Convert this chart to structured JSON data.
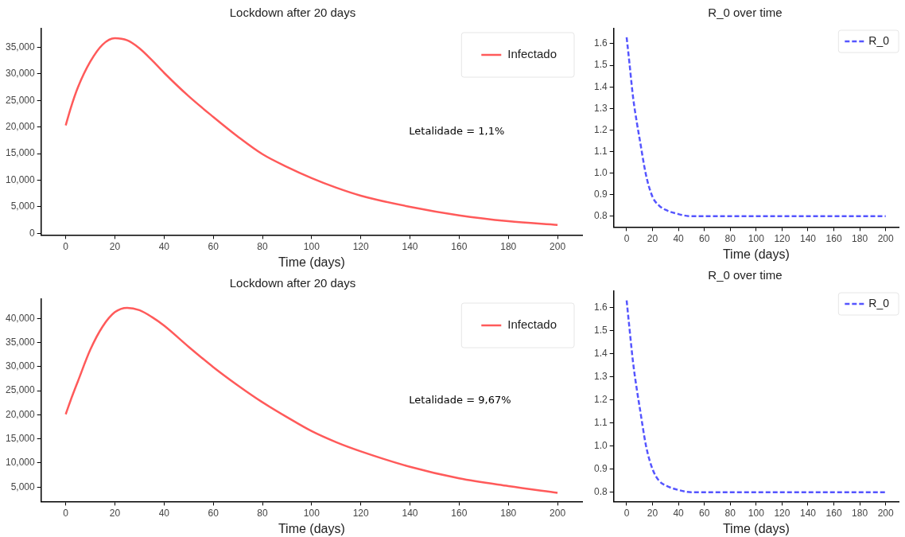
{
  "chart_data": [
    {
      "type": "line",
      "title": "Lockdown after 20 days",
      "xlabel": "Time (days)",
      "legend": "top right",
      "marker": "none",
      "annotations": [
        "Letalidade = 1,1%"
      ],
      "x": [
        0,
        2,
        5,
        10,
        15,
        20,
        25,
        30,
        35,
        40,
        50,
        60,
        70,
        80,
        90,
        100,
        110,
        120,
        140,
        160,
        180,
        200
      ],
      "series": [
        {
          "name": "Infectado",
          "color": "#ff5a5a",
          "line_style": "solid",
          "values": [
            20300,
            23500,
            27500,
            32300,
            35500,
            36700,
            36300,
            34800,
            32600,
            30200,
            25800,
            21900,
            18200,
            14900,
            12500,
            10400,
            8600,
            7100,
            5000,
            3400,
            2300,
            1600
          ]
        }
      ],
      "xlim": [
        -10,
        210
      ],
      "xticks": [
        0,
        20,
        40,
        60,
        80,
        100,
        120,
        140,
        160,
        180,
        200
      ],
      "ylim": [
        -300,
        38500
      ],
      "yticks": [
        0,
        {
          "value": 5000,
          "label": "5,000"
        },
        {
          "value": 10000,
          "label": "10,000"
        },
        {
          "value": 15000,
          "label": "15,000"
        },
        {
          "value": 20000,
          "label": "20,000"
        },
        {
          "value": 25000,
          "label": "25,000"
        },
        {
          "value": 30000,
          "label": "30,000"
        },
        {
          "value": 35000,
          "label": "35,000"
        }
      ]
    },
    {
      "type": "line",
      "title": "Lockdown after 20 days",
      "xlabel": "Time (days)",
      "legend": "top right",
      "marker": "none",
      "annotations": [
        "Letalidade = 9,67%"
      ],
      "x": [
        0,
        2,
        5,
        10,
        15,
        20,
        25,
        30,
        35,
        40,
        50,
        60,
        70,
        80,
        90,
        100,
        110,
        120,
        140,
        160,
        180,
        200
      ],
      "series": [
        {
          "name": "Infectado",
          "color": "#ff5a5a",
          "line_style": "solid",
          "values": [
            20100,
            23000,
            27000,
            33500,
            38300,
            41300,
            42200,
            41700,
            40300,
            38500,
            34100,
            29900,
            26100,
            22600,
            19500,
            16600,
            14300,
            12400,
            9200,
            6800,
            5200,
            3800
          ]
        }
      ],
      "xlim": [
        -10,
        210
      ],
      "xticks": [
        0,
        20,
        40,
        60,
        80,
        100,
        120,
        140,
        160,
        180,
        200
      ],
      "ylim": [
        2000,
        44000
      ],
      "yticks": [
        {
          "value": 5000,
          "label": "5,000"
        },
        {
          "value": 10000,
          "label": "10,000"
        },
        {
          "value": 15000,
          "label": "15,000"
        },
        {
          "value": 20000,
          "label": "20,000"
        },
        {
          "value": 25000,
          "label": "25,000"
        },
        {
          "value": 30000,
          "label": "30,000"
        },
        {
          "value": 35000,
          "label": "35,000"
        },
        {
          "value": 40000,
          "label": "40,000"
        }
      ]
    },
    {
      "type": "line",
      "title": "R_0 over time",
      "xlabel": "Time (days)",
      "legend": "top right",
      "marker": "none",
      "x": [
        0,
        2,
        5,
        8,
        10,
        15,
        20,
        25,
        30,
        40,
        50,
        60,
        100,
        150,
        200
      ],
      "series": [
        {
          "name": "R_0",
          "color": "#5555ff",
          "line_style": "dashed",
          "values": [
            1.63,
            1.52,
            1.35,
            1.23,
            1.16,
            0.99,
            0.89,
            0.85,
            0.83,
            0.81,
            0.8,
            0.8,
            0.8,
            0.8,
            0.8
          ]
        }
      ],
      "xlim": [
        -10,
        210
      ],
      "xticks": [
        0,
        20,
        40,
        60,
        80,
        100,
        120,
        140,
        160,
        180,
        200
      ],
      "ylim": [
        0.75,
        1.67
      ],
      "yticks": [
        0.8,
        0.9,
        {
          "value": 1,
          "label": "1.0"
        },
        1.1,
        1.2,
        1.3,
        1.4,
        1.5,
        1.6
      ]
    },
    {
      "type": "line",
      "title": "R_0 over time",
      "xlabel": "Time (days)",
      "legend": "top right",
      "marker": "none",
      "x": [
        0,
        2,
        5,
        8,
        10,
        15,
        20,
        25,
        30,
        40,
        50,
        60,
        100,
        150,
        200
      ],
      "series": [
        {
          "name": "R_0",
          "color": "#5555ff",
          "line_style": "dashed",
          "values": [
            1.63,
            1.52,
            1.36,
            1.24,
            1.17,
            1.0,
            0.9,
            0.85,
            0.83,
            0.81,
            0.8,
            0.8,
            0.8,
            0.8,
            0.8
          ]
        }
      ],
      "xlim": [
        -10,
        210
      ],
      "xticks": [
        0,
        20,
        40,
        60,
        80,
        100,
        120,
        140,
        160,
        180,
        200
      ],
      "ylim": [
        0.76,
        1.67
      ],
      "yticks": [
        0.8,
        0.9,
        {
          "value": 1,
          "label": "1.0"
        },
        1.1,
        1.2,
        1.3,
        1.4,
        1.5,
        1.6
      ]
    }
  ]
}
